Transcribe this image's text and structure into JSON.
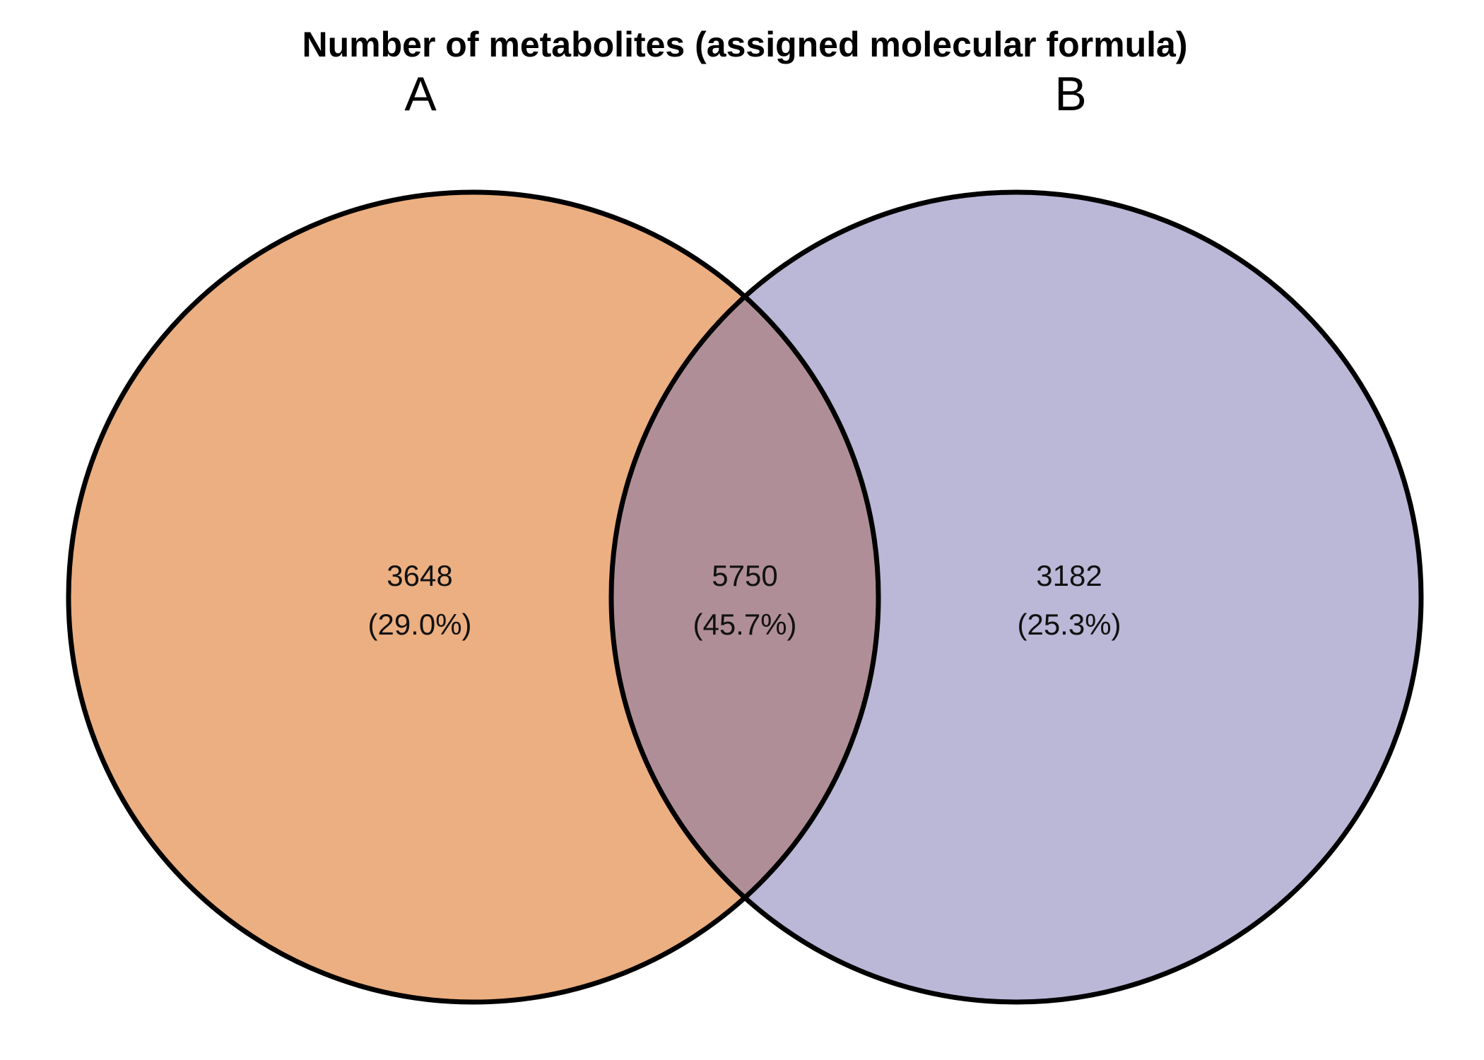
{
  "title": "Number of metabolites (assigned molecular formula)",
  "sets": [
    {
      "label": "A",
      "color": "#ECAF81"
    },
    {
      "label": "B",
      "color": "#BAB7D7"
    }
  ],
  "overlap_color": "#B08E98",
  "outline_color": "#000000",
  "regions": {
    "a_only": {
      "count": "3648",
      "percent": "(29.0%)"
    },
    "both": {
      "count": "5750",
      "percent": "(45.7%)"
    },
    "b_only": {
      "count": "3182",
      "percent": "(25.3%)"
    }
  }
}
